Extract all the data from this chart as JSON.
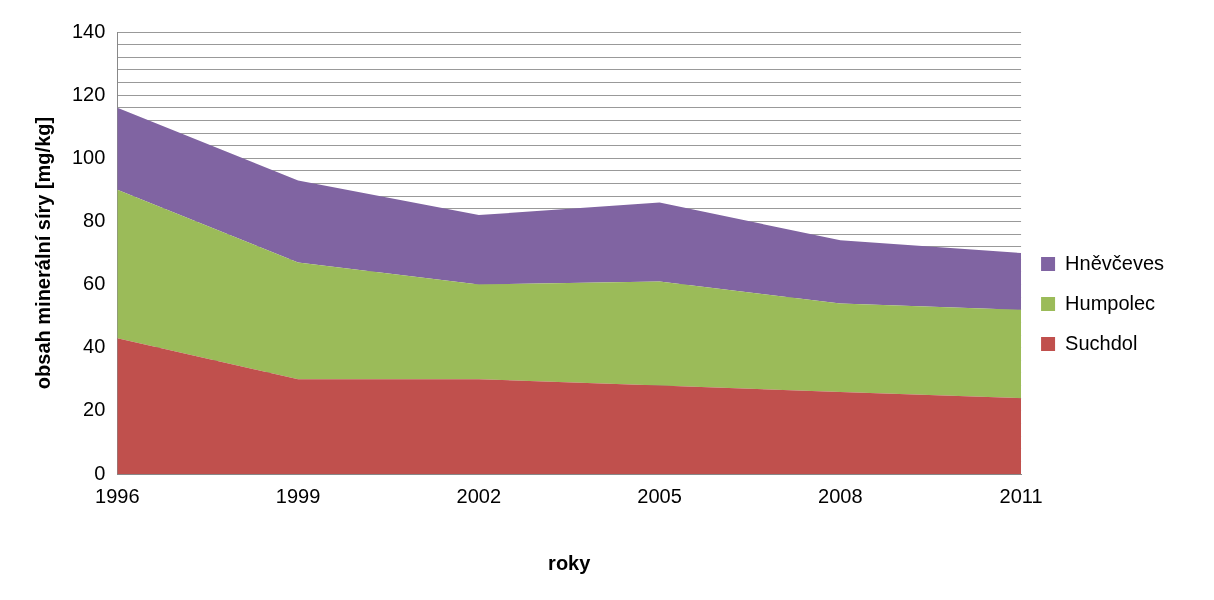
{
  "chart_data": {
    "type": "area",
    "stacked": true,
    "xlabel": "roky",
    "ylabel": "obsah minerální síry [mg/kg]",
    "categories": [
      "1996",
      "1999",
      "2002",
      "2005",
      "2008",
      "2011"
    ],
    "series": [
      {
        "name": "Suchdol",
        "color": "#c0504d",
        "values": [
          43,
          30,
          30,
          28,
          26,
          24
        ]
      },
      {
        "name": "Humpolec",
        "color": "#9bbb59",
        "values": [
          47,
          37,
          30,
          33,
          28,
          28
        ]
      },
      {
        "name": "Hněvčeves",
        "color": "#8064a2",
        "values": [
          26,
          26,
          22,
          25,
          20,
          18
        ]
      }
    ],
    "ylim": [
      0,
      140
    ],
    "yticks": [
      0,
      {
        "value": 4,
        "label": null
      },
      {
        "value": 8,
        "label": null
      },
      {
        "value": 12,
        "label": null
      },
      {
        "value": 16,
        "label": null
      },
      20,
      {
        "value": 24,
        "label": null
      },
      {
        "value": 28,
        "label": null
      },
      {
        "value": 32,
        "label": null
      },
      {
        "value": 36,
        "label": null
      },
      40,
      {
        "value": 44,
        "label": null
      },
      {
        "value": 48,
        "label": null
      },
      {
        "value": 52,
        "label": null
      },
      {
        "value": 56,
        "label": null
      },
      60,
      {
        "value": 64,
        "label": null
      },
      {
        "value": 68,
        "label": null
      },
      {
        "value": 72,
        "label": null
      },
      {
        "value": 76,
        "label": null
      },
      80,
      {
        "value": 84,
        "label": null
      },
      {
        "value": 88,
        "label": null
      },
      {
        "value": 92,
        "label": null
      },
      {
        "value": 96,
        "label": null
      },
      100,
      {
        "value": 104,
        "label": null
      },
      {
        "value": 108,
        "label": null
      },
      {
        "value": 112,
        "label": null
      },
      {
        "value": 116,
        "label": null
      },
      120,
      {
        "value": 124,
        "label": null
      },
      {
        "value": 128,
        "label": null
      },
      {
        "value": 132,
        "label": null
      },
      {
        "value": 136,
        "label": null
      },
      140
    ],
    "grid": "y",
    "legend": "right"
  }
}
